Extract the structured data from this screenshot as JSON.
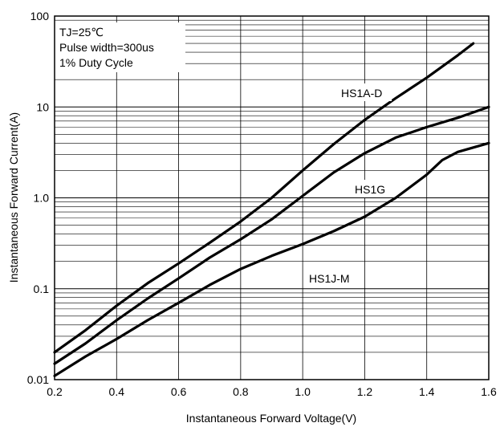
{
  "chart_data": {
    "type": "line",
    "title": "",
    "xlabel": "Instantaneous Forward Voltage(V)",
    "ylabel": "Instantaneous Forward Current(A)",
    "xlim": [
      0.2,
      1.6
    ],
    "ylim": [
      0.01,
      100
    ],
    "yscale": "log",
    "grid": true,
    "x_ticks": [
      "0.2",
      "0.4",
      "0.6",
      "0.8",
      "1.0",
      "1.2",
      "1.4",
      "1.6"
    ],
    "y_ticks": [
      "0.01",
      "0.1",
      "1.0",
      "10",
      "100"
    ],
    "notes": [
      "TJ=25℃",
      "Pulse width=300us",
      "1% Duty Cycle"
    ],
    "series": [
      {
        "name": "HS1A-D",
        "x": [
          0.2,
          0.3,
          0.4,
          0.5,
          0.6,
          0.7,
          0.8,
          0.9,
          1.0,
          1.1,
          1.2,
          1.3,
          1.4,
          1.5,
          1.55
        ],
        "y": [
          0.02,
          0.035,
          0.065,
          0.115,
          0.19,
          0.32,
          0.55,
          1.0,
          2.0,
          3.9,
          7.2,
          12.5,
          21,
          37,
          50
        ]
      },
      {
        "name": "HS1G",
        "x": [
          0.2,
          0.3,
          0.4,
          0.5,
          0.6,
          0.7,
          0.8,
          0.9,
          1.0,
          1.1,
          1.2,
          1.3,
          1.4,
          1.5,
          1.6
        ],
        "y": [
          0.015,
          0.025,
          0.045,
          0.078,
          0.13,
          0.22,
          0.35,
          0.58,
          1.05,
          1.9,
          3.1,
          4.6,
          6.0,
          7.6,
          10
        ]
      },
      {
        "name": "HS1J-M",
        "x": [
          0.2,
          0.3,
          0.4,
          0.5,
          0.6,
          0.7,
          0.8,
          0.9,
          1.0,
          1.1,
          1.2,
          1.3,
          1.4,
          1.45,
          1.5,
          1.6
        ],
        "y": [
          0.011,
          0.018,
          0.028,
          0.045,
          0.07,
          0.11,
          0.165,
          0.23,
          0.31,
          0.43,
          0.62,
          1.0,
          1.8,
          2.6,
          3.2,
          4.0
        ]
      }
    ]
  }
}
